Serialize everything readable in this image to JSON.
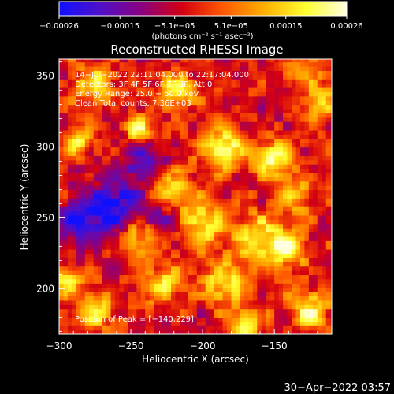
{
  "chart_data": {
    "type": "heatmap",
    "title": "Reconstructed RHESSI Image",
    "xlabel": "Heliocentric X (arcsec)",
    "ylabel": "Heliocentric Y (arcsec)",
    "xlim": [
      -300,
      -110
    ],
    "ylim": [
      168,
      362
    ],
    "x_ticks": [
      -300,
      -250,
      -200,
      -150
    ],
    "y_ticks": [
      200,
      250,
      300,
      350
    ],
    "x_tick_labels": [
      "−300",
      "−250",
      "−200",
      "−150"
    ],
    "y_tick_labels": [
      "200",
      "250",
      "300",
      "350"
    ],
    "colorbar": {
      "range": [
        -0.00026,
        0.00026
      ],
      "ticks": [
        -0.00026,
        -0.00015,
        -5.1e-05,
        5.1e-05,
        0.00015,
        0.00026
      ],
      "tick_labels": [
        "−0.00026",
        "−0.00015",
        "−5.1e−05",
        "5.1e−05",
        "0.00015",
        "0.00026"
      ],
      "units_label": "(photons cm⁻² s⁻¹ asec⁻²)",
      "colors": [
        "#1010ff",
        "#5010c8",
        "#8a0080",
        "#d40010",
        "#ff5a00",
        "#ffb000",
        "#ffff30",
        "#ffffe0"
      ]
    },
    "annotations": [
      "14−Jul−2022 22:11:04.000 to 22:17:04.000",
      "Detectors: 3F 4F 5F 6F 7F 8F, Att 0",
      "Energy Range: 25.0 − 50.0 keV",
      "Clean     Total counts: 7.36E+03"
    ],
    "peak_label": "Position of Peak = [−140,229]",
    "blobs": [
      {
        "x": -185,
        "y": 298,
        "v": 1.0,
        "r": 10
      },
      {
        "x": -218,
        "y": 340,
        "v": 0.95,
        "r": 8
      },
      {
        "x": -243,
        "y": 312,
        "v": 0.8,
        "r": 7
      },
      {
        "x": -287,
        "y": 305,
        "v": 0.85,
        "r": 7
      },
      {
        "x": -275,
        "y": 345,
        "v": 0.7,
        "r": 9
      },
      {
        "x": -150,
        "y": 292,
        "v": 0.9,
        "r": 9
      },
      {
        "x": -160,
        "y": 235,
        "v": 0.85,
        "r": 12
      },
      {
        "x": -140,
        "y": 229,
        "v": 1.0,
        "r": 8
      },
      {
        "x": -200,
        "y": 245,
        "v": 0.8,
        "r": 11
      },
      {
        "x": -220,
        "y": 270,
        "v": 0.75,
        "r": 10
      },
      {
        "x": -185,
        "y": 205,
        "v": 0.75,
        "r": 11
      },
      {
        "x": -228,
        "y": 203,
        "v": 0.7,
        "r": 10
      },
      {
        "x": -125,
        "y": 185,
        "v": 0.8,
        "r": 10
      },
      {
        "x": -275,
        "y": 185,
        "v": 0.75,
        "r": 10
      },
      {
        "x": -295,
        "y": 205,
        "v": 0.65,
        "r": 8
      },
      {
        "x": -135,
        "y": 265,
        "v": 0.6,
        "r": 9
      },
      {
        "x": -118,
        "y": 330,
        "v": 0.55,
        "r": 10
      },
      {
        "x": -170,
        "y": 175,
        "v": 0.7,
        "r": 9
      },
      {
        "x": -245,
        "y": 235,
        "v": 0.6,
        "r": 9
      },
      {
        "x": -130,
        "y": 355,
        "v": 0.45,
        "r": 10
      },
      {
        "x": -270,
        "y": 255,
        "v": -0.7,
        "r": 12
      },
      {
        "x": -290,
        "y": 245,
        "v": -0.55,
        "r": 10
      },
      {
        "x": -240,
        "y": 290,
        "v": -0.6,
        "r": 10
      },
      {
        "x": -255,
        "y": 265,
        "v": -0.5,
        "r": 12
      },
      {
        "x": -225,
        "y": 250,
        "v": -0.45,
        "r": 8
      }
    ]
  },
  "footer": {
    "timestamp": "30−Apr−2022 03:57"
  }
}
